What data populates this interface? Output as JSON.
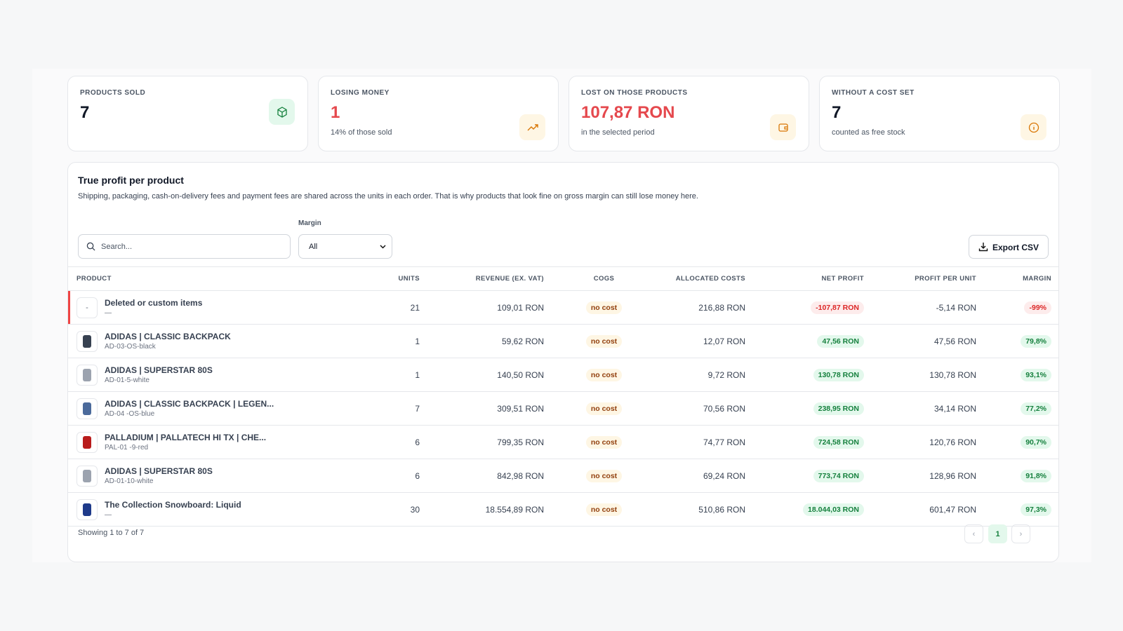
{
  "cards": [
    {
      "label": "PRODUCTS SOLD",
      "value": "7"
    },
    {
      "label": "LOSING MONEY",
      "value": "1",
      "note": "14% of those sold"
    },
    {
      "label": "LOST ON THOSE PRODUCTS",
      "value": "107,87 RON",
      "note": "in the selected period"
    },
    {
      "label": "WITHOUT A COST SET",
      "value": "7",
      "note": "counted as free stock"
    }
  ],
  "section": {
    "title": "True profit per product",
    "description": "Shipping, packaging, cash-on-delivery fees and payment fees are shared across the units in each order. That is why products that look fine on gross margin can still lose money here."
  },
  "filters": {
    "search_placeholder": "Search...",
    "margin_label": "Margin",
    "margin_value": "All",
    "export": "Export CSV"
  },
  "table": {
    "columns": [
      "PRODUCT",
      "UNITS",
      "REVENUE (EX. VAT)",
      "COGS",
      "ALLOCATED COSTS",
      "NET PROFIT",
      "PROFIT PER UNIT",
      "MARGIN"
    ],
    "rows": [
      {
        "thumb": "-",
        "name": "Deleted or custom items",
        "sku": "—",
        "units": 21,
        "revenue": "109,01 RON",
        "cogs": "no cost",
        "allocated": "216,88 RON",
        "net_profit": "-107,87 RON",
        "profit_per_unit": "-5,14 RON",
        "margin": "-99%"
      },
      {
        "name": "ADIDAS | CLASSIC BACKPACK",
        "sku": "AD-03-OS-black",
        "units": 1,
        "revenue": "59,62 RON",
        "cogs": "no cost",
        "allocated": "12,07 RON",
        "net_profit": "47,56 RON",
        "profit_per_unit": "47,56 RON",
        "margin": "79,8%"
      },
      {
        "name": "ADIDAS | SUPERSTAR 80S",
        "sku": "AD-01-5-white",
        "units": 1,
        "revenue": "140,50 RON",
        "cogs": "no cost",
        "allocated": "9,72 RON",
        "net_profit": "130,78 RON",
        "profit_per_unit": "130,78 RON",
        "margin": "93,1%"
      },
      {
        "name": "ADIDAS | CLASSIC BACKPACK | LEGEN...",
        "sku": "AD-04 -OS-blue",
        "units": 7,
        "revenue": "309,51 RON",
        "cogs": "no cost",
        "allocated": "70,56 RON",
        "net_profit": "238,95 RON",
        "profit_per_unit": "34,14 RON",
        "margin": "77,2%"
      },
      {
        "name": "PALLADIUM | PALLATECH HI TX | CHE...",
        "sku": "PAL-01 -9-red",
        "units": 6,
        "revenue": "799,35 RON",
        "cogs": "no cost",
        "allocated": "74,77 RON",
        "net_profit": "724,58 RON",
        "profit_per_unit": "120,76 RON",
        "margin": "90,7%"
      },
      {
        "name": "ADIDAS | SUPERSTAR 80S",
        "sku": "AD-01-10-white",
        "units": 6,
        "revenue": "842,98 RON",
        "cogs": "no cost",
        "allocated": "69,24 RON",
        "net_profit": "773,74 RON",
        "profit_per_unit": "128,96 RON",
        "margin": "91,8%"
      },
      {
        "name": "The Collection Snowboard: Liquid",
        "sku": "—",
        "units": 30,
        "revenue": "18.554,89 RON",
        "cogs": "no cost",
        "allocated": "510,86 RON",
        "net_profit": "18.044,03 RON",
        "profit_per_unit": "601,47 RON",
        "margin": "97,3%"
      }
    ]
  },
  "footer": {
    "showing": "Showing 1 to 7 of 7",
    "page": "1"
  }
}
